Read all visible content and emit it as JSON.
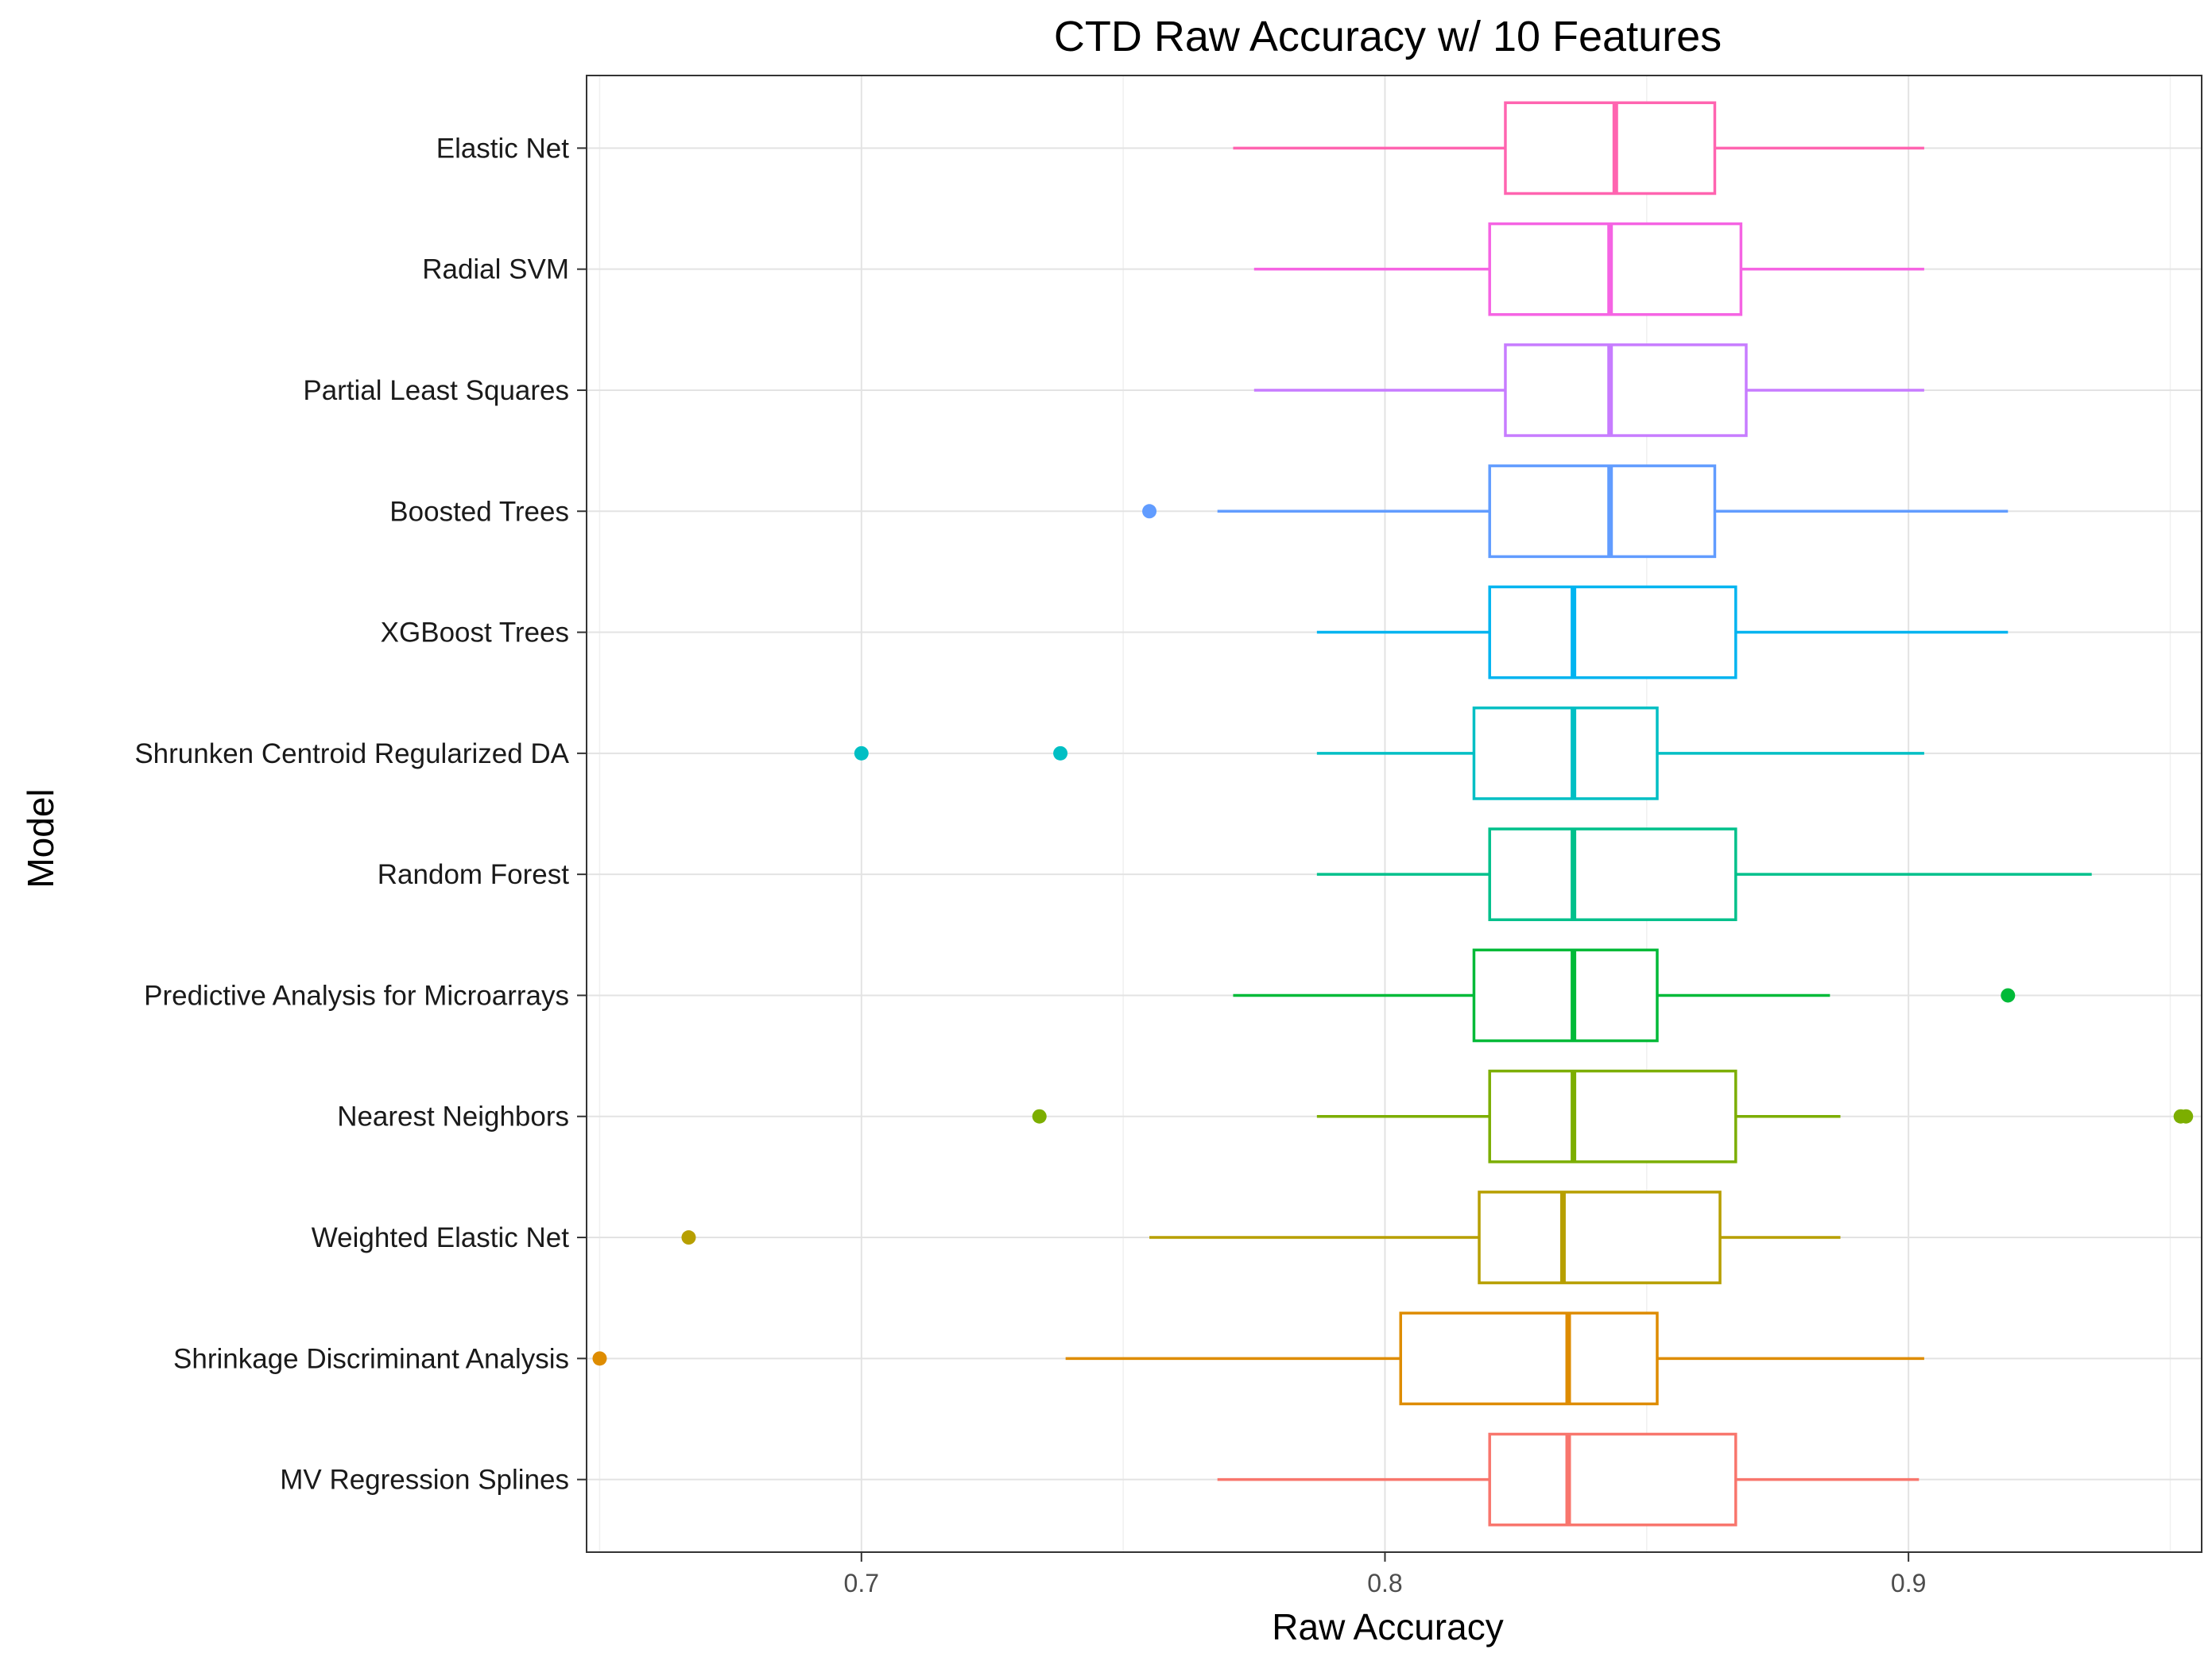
{
  "chart_data": {
    "type": "boxplot",
    "orientation": "horizontal",
    "title": "CTD Raw Accuracy w/ 10 Features",
    "xlabel": "Raw Accuracy",
    "ylabel": "Model",
    "xlim": [
      0.6475,
      0.956
    ],
    "x_ticks": [
      0.7,
      0.8,
      0.9
    ],
    "x_tick_labels": [
      "0.7",
      "0.8",
      "0.9"
    ],
    "grid": true,
    "legend": "none",
    "categories": [
      "MV Regression Splines",
      "Shrinkage Discriminant Analysis",
      "Weighted Elastic Net",
      "Nearest Neighbors",
      "Predictive Analysis for Microarrays",
      "Random Forest",
      "Shrunken Centroid Regularized DA",
      "XGBoost Trees",
      "Boosted Trees",
      "Partial Least Squares",
      "Radial SVM",
      "Elastic Net"
    ],
    "series": [
      {
        "category": "MV Regression Splines",
        "color": "#F8766D",
        "whisker_low": 0.768,
        "q1": 0.82,
        "median": 0.835,
        "q3": 0.867,
        "whisker_high": 0.902,
        "outliers": []
      },
      {
        "category": "Shrinkage Discriminant Analysis",
        "color": "#DE8C00",
        "whisker_low": 0.739,
        "q1": 0.803,
        "median": 0.835,
        "q3": 0.852,
        "whisker_high": 0.903,
        "outliers": [
          0.65
        ]
      },
      {
        "category": "Weighted Elastic Net",
        "color": "#B79F00",
        "whisker_low": 0.755,
        "q1": 0.818,
        "median": 0.834,
        "q3": 0.864,
        "whisker_high": 0.887,
        "outliers": [
          0.667
        ]
      },
      {
        "category": "Nearest Neighbors",
        "color": "#7CAE00",
        "whisker_low": 0.787,
        "q1": 0.82,
        "median": 0.836,
        "q3": 0.867,
        "whisker_high": 0.887,
        "outliers": [
          0.734,
          0.952,
          0.953
        ]
      },
      {
        "category": "Predictive Analysis for Microarrays",
        "color": "#00BA38",
        "whisker_low": 0.771,
        "q1": 0.817,
        "median": 0.836,
        "q3": 0.852,
        "whisker_high": 0.885,
        "outliers": [
          0.919
        ]
      },
      {
        "category": "Random Forest",
        "color": "#00C08B",
        "whisker_low": 0.787,
        "q1": 0.82,
        "median": 0.836,
        "q3": 0.867,
        "whisker_high": 0.935,
        "outliers": []
      },
      {
        "category": "Shrunken Centroid Regularized DA",
        "color": "#00BFC4",
        "whisker_low": 0.787,
        "q1": 0.817,
        "median": 0.836,
        "q3": 0.852,
        "whisker_high": 0.903,
        "outliers": [
          0.7,
          0.738
        ]
      },
      {
        "category": "XGBoost Trees",
        "color": "#00B4F0",
        "whisker_low": 0.787,
        "q1": 0.82,
        "median": 0.836,
        "q3": 0.867,
        "whisker_high": 0.919,
        "outliers": []
      },
      {
        "category": "Boosted Trees",
        "color": "#619CFF",
        "whisker_low": 0.768,
        "q1": 0.82,
        "median": 0.843,
        "q3": 0.863,
        "whisker_high": 0.919,
        "outliers": [
          0.755
        ]
      },
      {
        "category": "Partial Least Squares",
        "color": "#C77CFF",
        "whisker_low": 0.775,
        "q1": 0.823,
        "median": 0.843,
        "q3": 0.869,
        "whisker_high": 0.903,
        "outliers": []
      },
      {
        "category": "Radial SVM",
        "color": "#F564E3",
        "whisker_low": 0.775,
        "q1": 0.82,
        "median": 0.843,
        "q3": 0.868,
        "whisker_high": 0.903,
        "outliers": []
      },
      {
        "category": "Elastic Net",
        "color": "#FF64B0",
        "whisker_low": 0.771,
        "q1": 0.823,
        "median": 0.844,
        "q3": 0.863,
        "whisker_high": 0.903,
        "outliers": []
      }
    ]
  }
}
